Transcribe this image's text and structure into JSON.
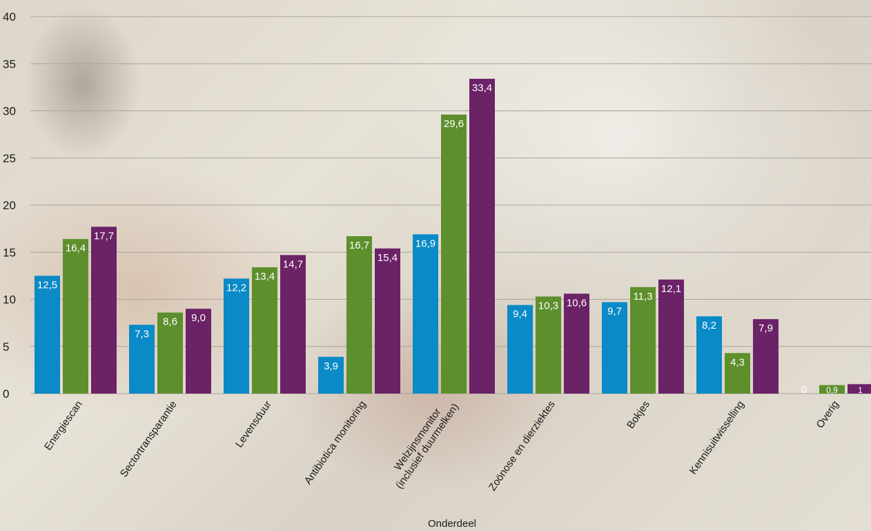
{
  "chart_data": {
    "type": "bar",
    "xlabel": "Onderdeel",
    "ylabel": "",
    "ylim": [
      0,
      40
    ],
    "yticks": [
      "0",
      "5",
      "10",
      "15",
      "20",
      "25",
      "30",
      "35",
      "40"
    ],
    "grid": true,
    "categories": [
      [
        "Energiescan"
      ],
      [
        "Sectortransparantie"
      ],
      [
        "Levensduur"
      ],
      [
        "Antibiotica monitoring"
      ],
      [
        "Welzijnsmonitor",
        "(inclusief duurmelken)"
      ],
      [
        "Zoönose en dierziektes"
      ],
      [
        "Bokjes"
      ],
      [
        "Kennisuitwisselling"
      ],
      [
        "Overig"
      ]
    ],
    "series": [
      {
        "color": "#0a8ac6",
        "values": [
          12.5,
          7.3,
          12.2,
          3.9,
          16.9,
          9.4,
          9.7,
          8.2,
          0
        ],
        "labels": [
          "12,5",
          "7,3",
          "12,2",
          "3,9",
          "16,9",
          "9,4",
          "9,7",
          "8,2",
          "0"
        ]
      },
      {
        "color": "#5e8f2d",
        "values": [
          16.4,
          8.6,
          13.4,
          16.7,
          29.6,
          10.3,
          11.3,
          4.3,
          0.9
        ],
        "labels": [
          "16,4",
          "8,6",
          "13,4",
          "16,7",
          "29,6",
          "10,3",
          "11,3",
          "4,3",
          "0,9"
        ]
      },
      {
        "color": "#6b2266",
        "values": [
          17.7,
          9.0,
          14.7,
          15.4,
          33.4,
          10.6,
          12.1,
          7.9,
          1
        ],
        "labels": [
          "17,7",
          "9,0",
          "14,7",
          "15,4",
          "33,4",
          "10,6",
          "12,1",
          "7,9",
          "1"
        ]
      }
    ]
  }
}
